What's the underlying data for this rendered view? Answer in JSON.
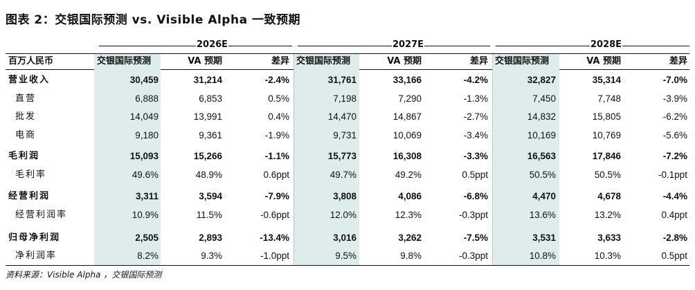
{
  "title": "图表 2：交银国际预测 vs. Visible Alpha 一致预期",
  "years": [
    "2026E",
    "2027E",
    "2028E"
  ],
  "header": {
    "unit": "百万人民币",
    "cols": [
      "交银国际预测",
      "VA 预期",
      "差异"
    ]
  },
  "rows": [
    {
      "label": "营业收入",
      "bold": true,
      "values": [
        "30,459",
        "31,214",
        "-2.4%",
        "31,761",
        "33,166",
        "-4.2%",
        "32,827",
        "35,314",
        "-7.0%"
      ]
    },
    {
      "label": "直营",
      "bold": false,
      "values": [
        "6,888",
        "6,853",
        "0.5%",
        "7,198",
        "7,290",
        "-1.3%",
        "7,450",
        "7,748",
        "-3.9%"
      ]
    },
    {
      "label": "批发",
      "bold": false,
      "values": [
        "14,049",
        "13,991",
        "0.4%",
        "14,470",
        "14,867",
        "-2.7%",
        "14,832",
        "15,805",
        "-6.2%"
      ]
    },
    {
      "label": "电商",
      "bold": false,
      "values": [
        "9,180",
        "9,361",
        "-1.9%",
        "9,731",
        "10,069",
        "-3.4%",
        "10,169",
        "10,769",
        "-5.6%"
      ]
    },
    {
      "label": "毛利润",
      "bold": true,
      "values": [
        "15,093",
        "15,266",
        "-1.1%",
        "15,773",
        "16,308",
        "-3.3%",
        "16,563",
        "17,846",
        "-7.2%"
      ]
    },
    {
      "label": "毛利率",
      "bold": false,
      "values": [
        "49.6%",
        "48.9%",
        "0.6ppt",
        "49.7%",
        "49.2%",
        "0.5ppt",
        "50.5%",
        "50.5%",
        "-0.1ppt"
      ]
    },
    {
      "label": "经营利润",
      "bold": true,
      "values": [
        "3,311",
        "3,594",
        "-7.9%",
        "3,808",
        "4,086",
        "-6.8%",
        "4,470",
        "4,678",
        "-4.4%"
      ]
    },
    {
      "label": "经营利润率",
      "bold": false,
      "values": [
        "10.9%",
        "11.5%",
        "-0.6ppt",
        "12.0%",
        "12.3%",
        "-0.3ppt",
        "13.6%",
        "13.2%",
        "0.4ppt"
      ]
    },
    {
      "label": "归母净利润",
      "bold": true,
      "values": [
        "2,505",
        "2,893",
        "-13.4%",
        "3,016",
        "3,262",
        "-7.5%",
        "3,531",
        "3,633",
        "-2.8%"
      ]
    },
    {
      "label": "净利润率",
      "bold": false,
      "values": [
        "8.2%",
        "9.3%",
        "-1.0ppt",
        "9.5%",
        "9.8%",
        "-0.3ppt",
        "10.8%",
        "10.3%",
        "0.5ppt"
      ]
    }
  ],
  "source": "资料来源：Visible Alpha ，交银国际预测"
}
